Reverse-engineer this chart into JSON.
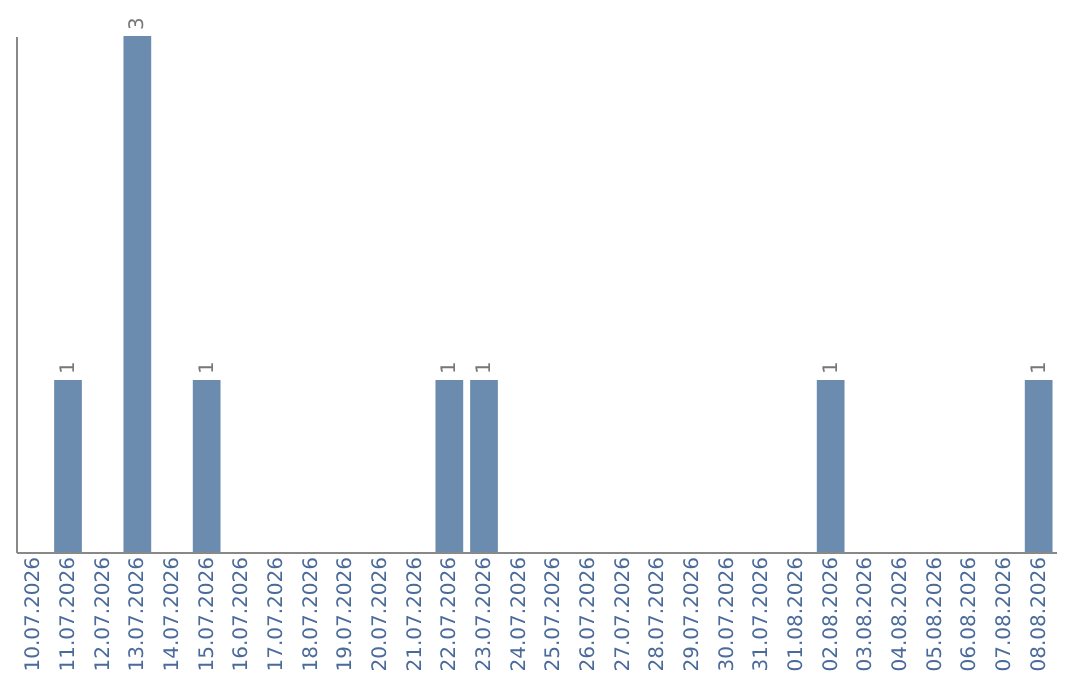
{
  "chart_data": {
    "type": "bar",
    "categories": [
      "10.07.2026",
      "11.07.2026",
      "12.07.2026",
      "13.07.2026",
      "14.07.2026",
      "15.07.2026",
      "16.07.2026",
      "17.07.2026",
      "18.07.2026",
      "19.07.2026",
      "20.07.2026",
      "21.07.2026",
      "22.07.2026",
      "23.07.2026",
      "24.07.2026",
      "25.07.2026",
      "26.07.2026",
      "27.07.2026",
      "28.07.2026",
      "29.07.2026",
      "30.07.2026",
      "31.07.2026",
      "01.08.2026",
      "02.08.2026",
      "03.08.2026",
      "04.08.2026",
      "05.08.2026",
      "06.08.2026",
      "07.08.2026",
      "08.08.2026"
    ],
    "values": [
      0,
      1,
      0,
      3,
      0,
      1,
      0,
      0,
      0,
      0,
      0,
      0,
      1,
      1,
      0,
      0,
      0,
      0,
      0,
      0,
      0,
      0,
      0,
      1,
      0,
      0,
      0,
      0,
      0,
      1
    ],
    "value_labels": [
      null,
      "1",
      null,
      "3",
      null,
      "1",
      null,
      null,
      null,
      null,
      null,
      null,
      "1",
      "1",
      null,
      null,
      null,
      null,
      null,
      null,
      null,
      null,
      null,
      "1",
      null,
      null,
      null,
      null,
      null,
      "1"
    ],
    "color": "#6b8cae",
    "ylim": [
      0,
      3
    ],
    "tick_labels": "x",
    "grid": false
  }
}
